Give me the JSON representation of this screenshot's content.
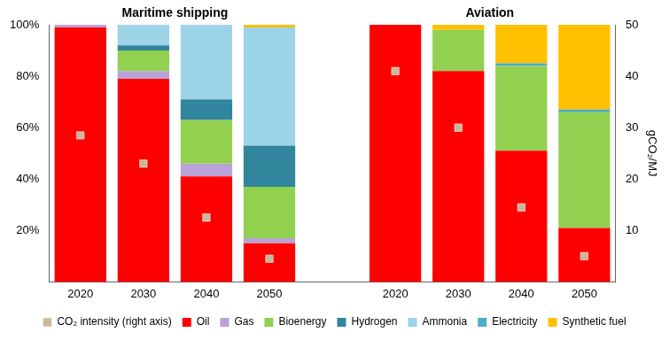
{
  "chart_data": {
    "type": "bar",
    "stacked": true,
    "grid": false,
    "legend": "bottom",
    "annotations": [
      "Maritime shipping",
      "Aviation"
    ],
    "categories": [
      "2020",
      "2030",
      "2040",
      "2050",
      null,
      "2020",
      "2030",
      "2040",
      "2050"
    ],
    "ylim": [
      0,
      100
    ],
    "yticks": [
      {
        "value": 20,
        "label": "20%"
      },
      {
        "value": 40,
        "label": "40%"
      },
      {
        "value": 60,
        "label": "60%"
      },
      {
        "value": 80,
        "label": "80%"
      },
      {
        "value": 100,
        "label": "100%"
      }
    ],
    "y2label": "gCO₂/MJ",
    "y2lim": [
      0,
      50
    ],
    "y2ticks": [
      10,
      20,
      30,
      40,
      50
    ],
    "series": [
      {
        "name": "Oil",
        "color": "#ff0000",
        "values": [
          99,
          79,
          41,
          15,
          null,
          100,
          82,
          51,
          21
        ]
      },
      {
        "name": "Gas",
        "color": "#b9a2d6",
        "values": [
          1,
          3,
          5,
          2,
          null,
          0,
          0,
          0,
          0
        ]
      },
      {
        "name": "Bioenergy",
        "color": "#92d050",
        "values": [
          0,
          8,
          17,
          20,
          null,
          0,
          16,
          33,
          45
        ]
      },
      {
        "name": "Hydrogen",
        "color": "#31859c",
        "values": [
          0,
          2,
          8,
          16,
          null,
          0,
          0,
          0,
          0
        ]
      },
      {
        "name": "Ammonia",
        "color": "#9dd3e6",
        "values": [
          0,
          8,
          29,
          46,
          null,
          0,
          0,
          0,
          0
        ]
      },
      {
        "name": "Electricity",
        "color": "#4bacc6",
        "values": [
          0,
          0,
          0,
          0,
          null,
          0,
          0,
          1,
          1
        ]
      },
      {
        "name": "Synthetic fuel",
        "color": "#ffc000",
        "values": [
          0,
          0,
          0,
          1,
          null,
          0,
          2,
          15,
          33
        ]
      },
      {
        "name": "CO₂ intensity (right axis)",
        "type": "scatter",
        "marker": "square",
        "axis": "y2",
        "color": "#c8b99c",
        "values": [
          28.5,
          23,
          12.5,
          4.5,
          null,
          41,
          30,
          14.5,
          5
        ]
      }
    ]
  }
}
